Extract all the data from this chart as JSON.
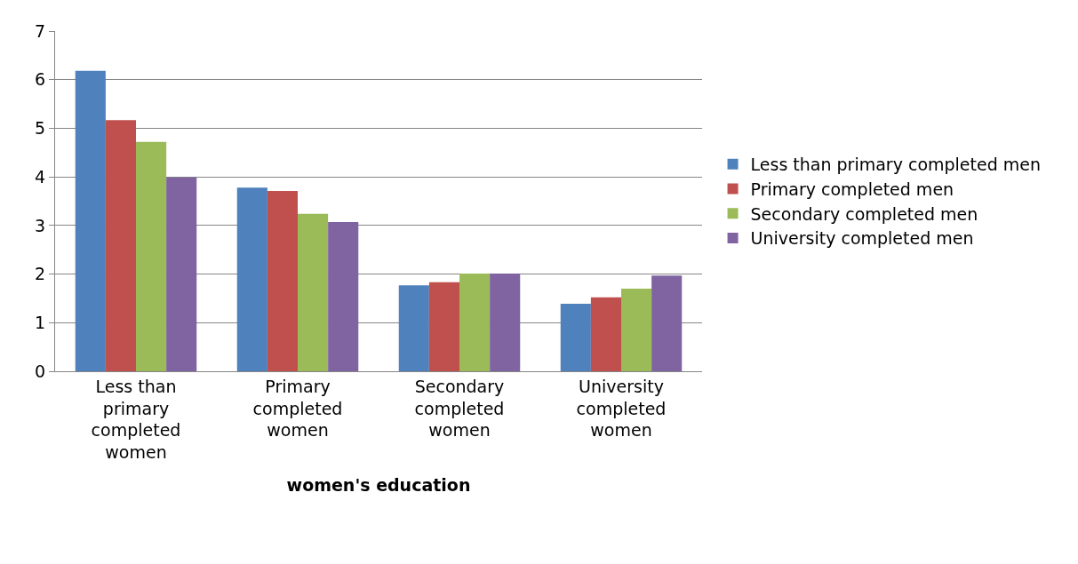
{
  "chart_data": {
    "type": "bar",
    "xlabel": "women's education",
    "categories": [
      "Less than primary completed women",
      "Primary completed women",
      "Secondary completed women",
      "University completed women"
    ],
    "series": [
      {
        "name": "Less than primary completed men",
        "color": "#4f81bd",
        "values": [
          6.18,
          3.78,
          1.77,
          1.39
        ]
      },
      {
        "name": "Primary completed men",
        "color": "#c0504d",
        "values": [
          5.17,
          3.71,
          1.83,
          1.52
        ]
      },
      {
        "name": "Secondary completed men",
        "color": "#9bbb59",
        "values": [
          4.72,
          3.24,
          2.01,
          1.7
        ]
      },
      {
        "name": "University completed men",
        "color": "#8064a2",
        "values": [
          3.99,
          3.07,
          2.01,
          1.97
        ]
      }
    ],
    "ylim": [
      0,
      7
    ],
    "yticks": [
      0,
      1,
      2,
      3,
      4,
      5,
      6,
      7
    ],
    "grid": "y",
    "legend": "right"
  }
}
